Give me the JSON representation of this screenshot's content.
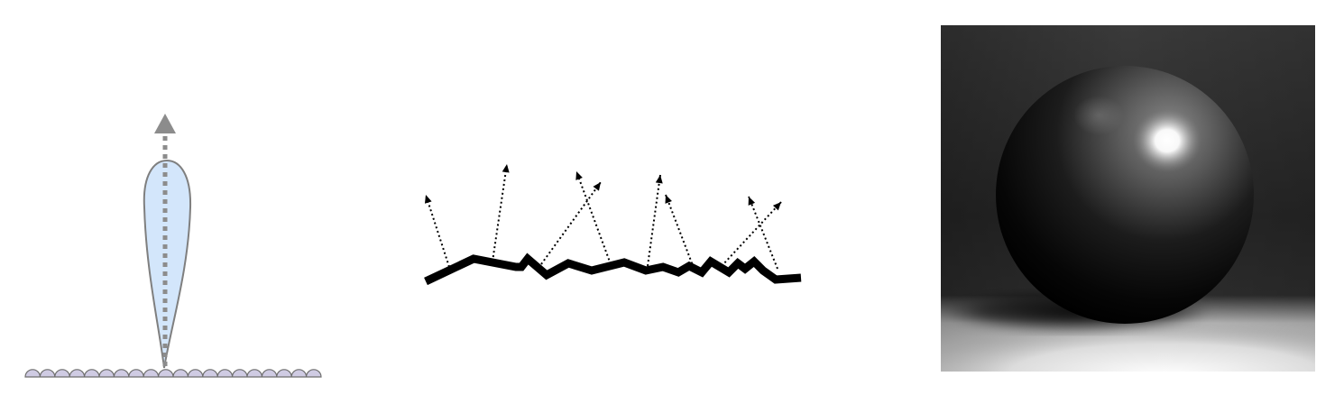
{
  "figure": {
    "panels": [
      {
        "id": "specular-lobe",
        "icon": "specular-lobe-diagram-icon",
        "colors": {
          "lobe_fill": "#d3e6fb",
          "lobe_stroke": "#7f7f7f",
          "arrow": "#8c8c8c",
          "surface_fill": "#cfcbe3",
          "surface_stroke": "#6d6d6d"
        }
      },
      {
        "id": "rough-surface-scattering",
        "icon": "microfacet-scattering-diagram-icon",
        "colors": {
          "surface": "#000000",
          "rays": "#000000"
        }
      },
      {
        "id": "rendered-sphere",
        "icon": "glossy-sphere-render-icon",
        "colors": {
          "background_top": "#3a3a3a",
          "floor": "#e8e8e8",
          "sphere_dark": "#050505",
          "highlight": "#ffffff"
        }
      }
    ]
  }
}
